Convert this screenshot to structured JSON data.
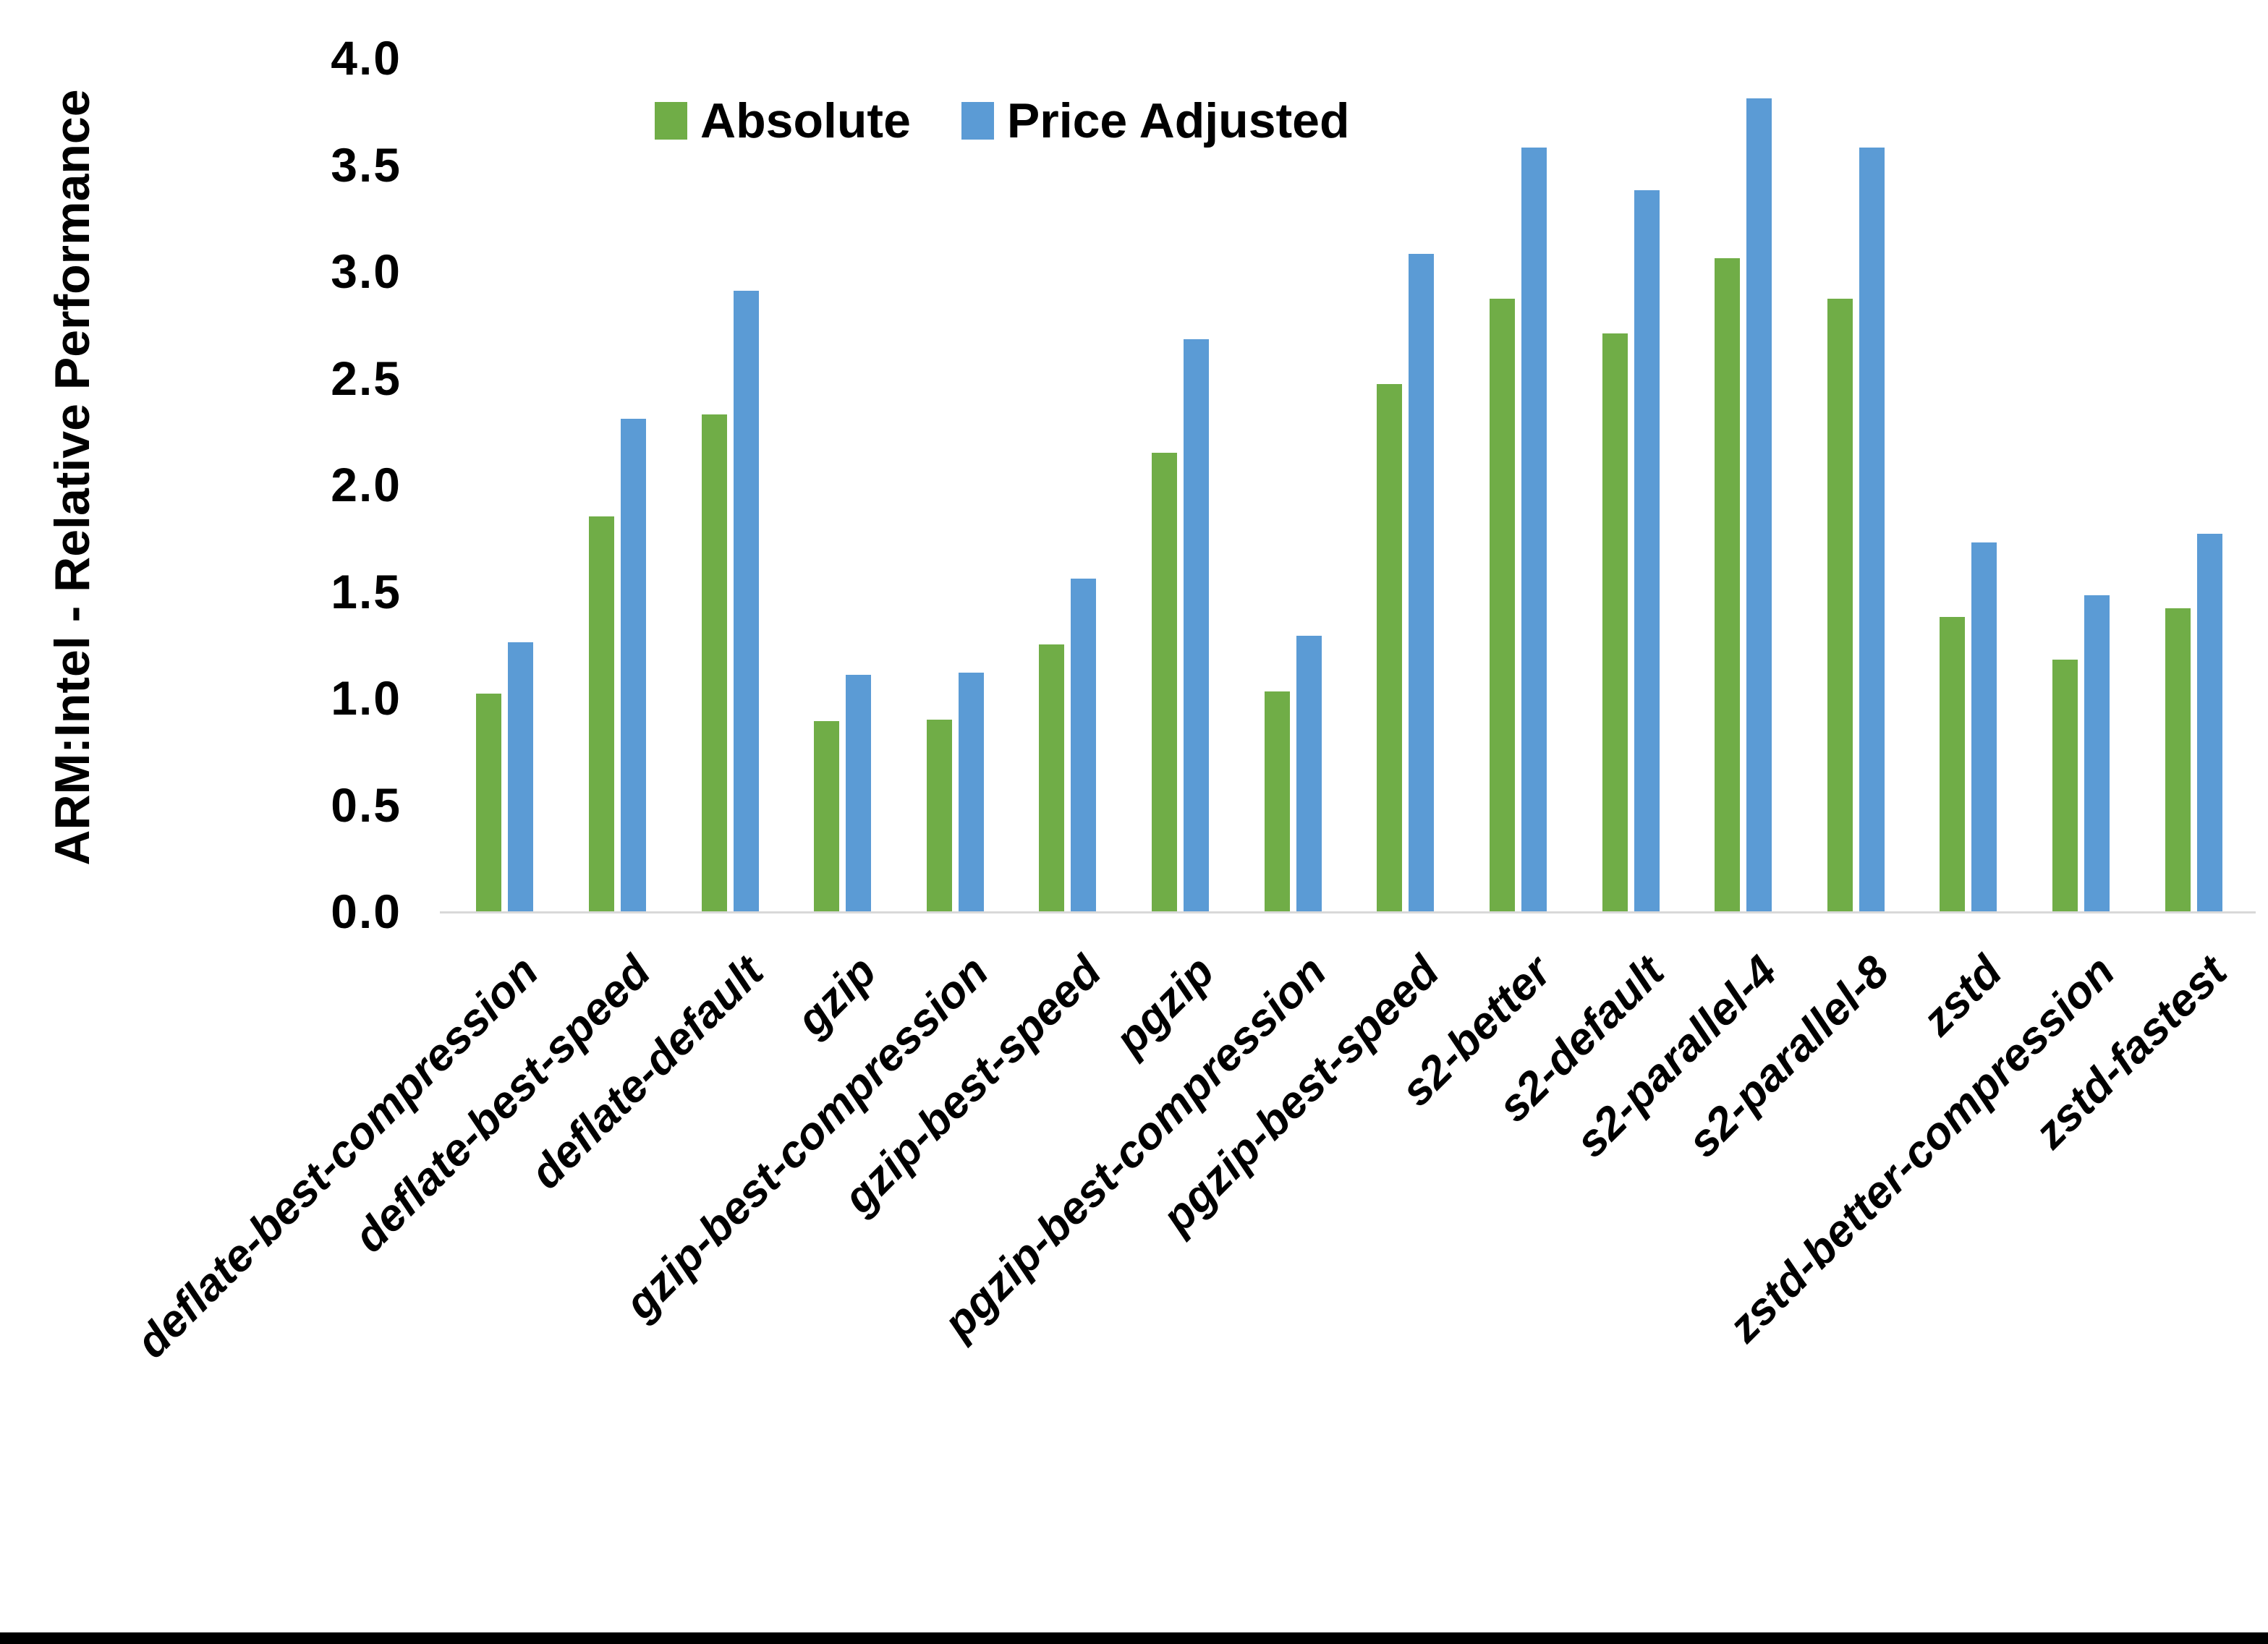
{
  "chart_data": {
    "type": "bar",
    "title": "",
    "xlabel": "",
    "ylabel": "ARM:Intel - Relative Performance",
    "ylim": [
      0.0,
      4.0
    ],
    "ytick_step": 0.5,
    "yticks": [
      "0.0",
      "0.5",
      "1.0",
      "1.5",
      "2.0",
      "2.5",
      "3.0",
      "3.5",
      "4.0"
    ],
    "grid": false,
    "legend_position": "top-center",
    "categories": [
      "deflate-best-compression",
      "deflate-best-speed",
      "deflate-default",
      "gzip",
      "gzip-best-compression",
      "gzip-best-speed",
      "pgzip",
      "pgzip-best-compression",
      "pgzip-best-speed",
      "s2-better",
      "s2-default",
      "s2-parallel-4",
      "s2-parallel-8",
      "zstd",
      "zstd-better-compression",
      "zstd-fastest"
    ],
    "series": [
      {
        "name": "Absolute",
        "color": "#70AD47",
        "values": [
          1.02,
          1.85,
          2.33,
          0.89,
          0.9,
          1.25,
          2.15,
          1.03,
          2.47,
          2.87,
          2.71,
          3.06,
          2.87,
          1.38,
          1.18,
          1.42
        ]
      },
      {
        "name": "Price Adjusted",
        "color": "#5B9BD5",
        "values": [
          1.26,
          2.31,
          2.91,
          1.11,
          1.12,
          1.56,
          2.68,
          1.29,
          3.08,
          3.58,
          3.38,
          3.81,
          3.58,
          1.73,
          1.48,
          1.77
        ]
      }
    ]
  },
  "colors": {
    "background": "#FFFFFF",
    "axis_line": "#D9D9D9",
    "text": "#000000",
    "bottom_border": "#000000"
  }
}
